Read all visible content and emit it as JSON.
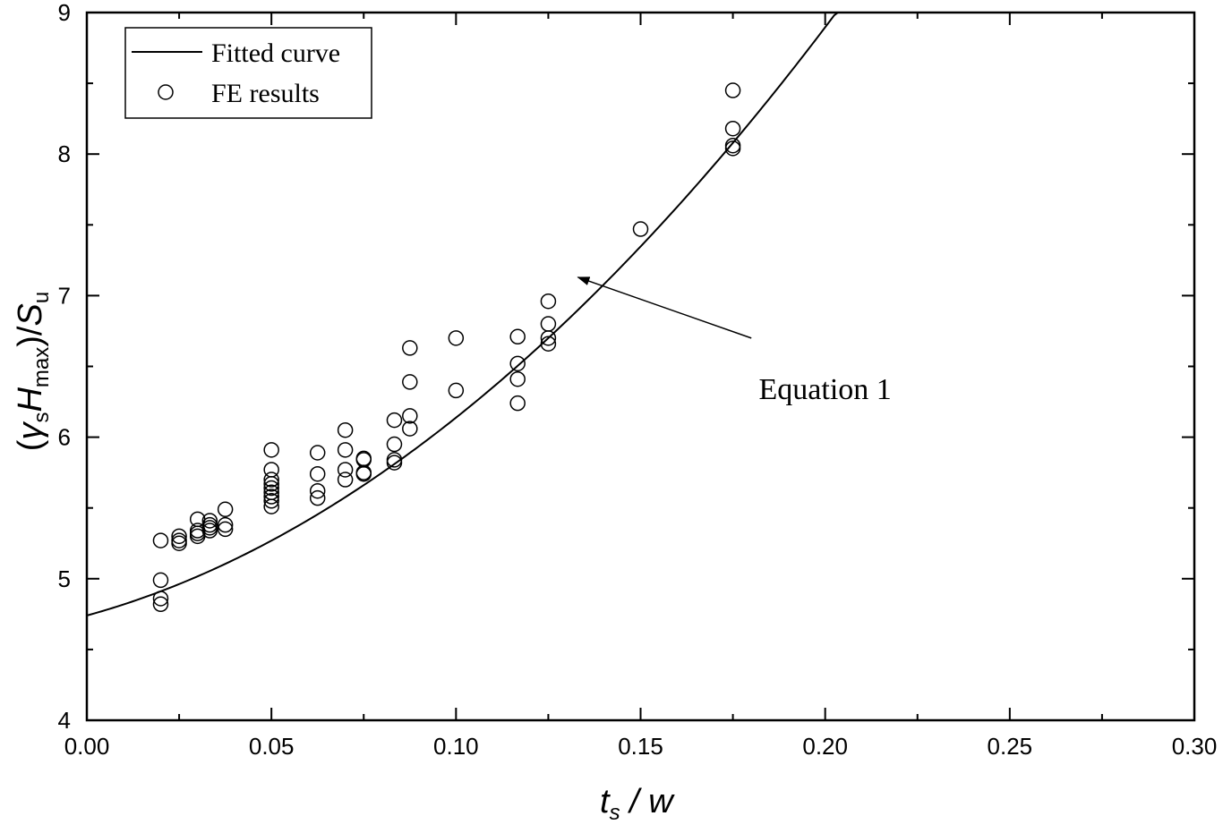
{
  "chart_data": {
    "type": "scatter",
    "title": "",
    "xlabel": {
      "t": "t",
      "sub": "s",
      "rest": " / w"
    },
    "ylabel": {
      "open": "(",
      "gamma": "γ",
      "gamma_sub": "s",
      "H": "H",
      "H_sub": "max",
      "close": ")/",
      "S": "S",
      "S_sub": "u"
    },
    "xlim": [
      0.0,
      0.3
    ],
    "ylim": [
      4,
      9
    ],
    "xticks": [
      "0.00",
      "0.05",
      "0.10",
      "0.15",
      "0.20",
      "0.25",
      "0.30"
    ],
    "yticks": [
      "4",
      "5",
      "6",
      "7",
      "8",
      "9"
    ],
    "grid": false,
    "legend_position": "top-left",
    "series": [
      {
        "name": "Fitted curve",
        "kind": "line",
        "coefficients": {
          "c0": 4.74,
          "c1": 7.18,
          "c2": 68.0
        },
        "x_range": [
          0.0,
          0.2045
        ]
      },
      {
        "name": "FE results",
        "kind": "scatter",
        "points": [
          [
            0.02,
            5.27
          ],
          [
            0.02,
            4.99
          ],
          [
            0.02,
            4.86
          ],
          [
            0.02,
            4.82
          ],
          [
            0.025,
            5.3
          ],
          [
            0.025,
            5.25
          ],
          [
            0.025,
            5.27
          ],
          [
            0.03,
            5.42
          ],
          [
            0.03,
            5.34
          ],
          [
            0.03,
            5.32
          ],
          [
            0.03,
            5.3
          ],
          [
            0.0333,
            5.41
          ],
          [
            0.0333,
            5.36
          ],
          [
            0.0333,
            5.38
          ],
          [
            0.0333,
            5.34
          ],
          [
            0.0375,
            5.49
          ],
          [
            0.0375,
            5.38
          ],
          [
            0.0375,
            5.35
          ],
          [
            0.05,
            5.91
          ],
          [
            0.05,
            5.77
          ],
          [
            0.05,
            5.7
          ],
          [
            0.05,
            5.67
          ],
          [
            0.05,
            5.64
          ],
          [
            0.05,
            5.61
          ],
          [
            0.05,
            5.58
          ],
          [
            0.05,
            5.55
          ],
          [
            0.05,
            5.51
          ],
          [
            0.0625,
            5.89
          ],
          [
            0.0625,
            5.74
          ],
          [
            0.0625,
            5.62
          ],
          [
            0.0625,
            5.57
          ],
          [
            0.07,
            6.05
          ],
          [
            0.07,
            5.91
          ],
          [
            0.07,
            5.77
          ],
          [
            0.07,
            5.7
          ],
          [
            0.075,
            5.85
          ],
          [
            0.075,
            5.84
          ],
          [
            0.075,
            5.75
          ],
          [
            0.075,
            5.74
          ],
          [
            0.0833,
            6.12
          ],
          [
            0.0833,
            5.95
          ],
          [
            0.0833,
            5.84
          ],
          [
            0.0833,
            5.82
          ],
          [
            0.0875,
            6.63
          ],
          [
            0.0875,
            6.39
          ],
          [
            0.0875,
            6.15
          ],
          [
            0.0875,
            6.06
          ],
          [
            0.1,
            6.7
          ],
          [
            0.1,
            6.33
          ],
          [
            0.1167,
            6.71
          ],
          [
            0.1167,
            6.52
          ],
          [
            0.1167,
            6.41
          ],
          [
            0.1167,
            6.24
          ],
          [
            0.125,
            6.96
          ],
          [
            0.125,
            6.8
          ],
          [
            0.125,
            6.7
          ],
          [
            0.125,
            6.66
          ],
          [
            0.15,
            7.47
          ],
          [
            0.175,
            8.45
          ],
          [
            0.175,
            8.18
          ],
          [
            0.175,
            8.06
          ],
          [
            0.175,
            8.04
          ]
        ]
      }
    ],
    "annotations": [
      {
        "text": "Equation 1",
        "arrow_to": [
          0.133,
          7.13
        ],
        "arrow_from": [
          0.18,
          6.7
        ],
        "text_at": [
          0.2,
          6.27
        ]
      }
    ]
  }
}
